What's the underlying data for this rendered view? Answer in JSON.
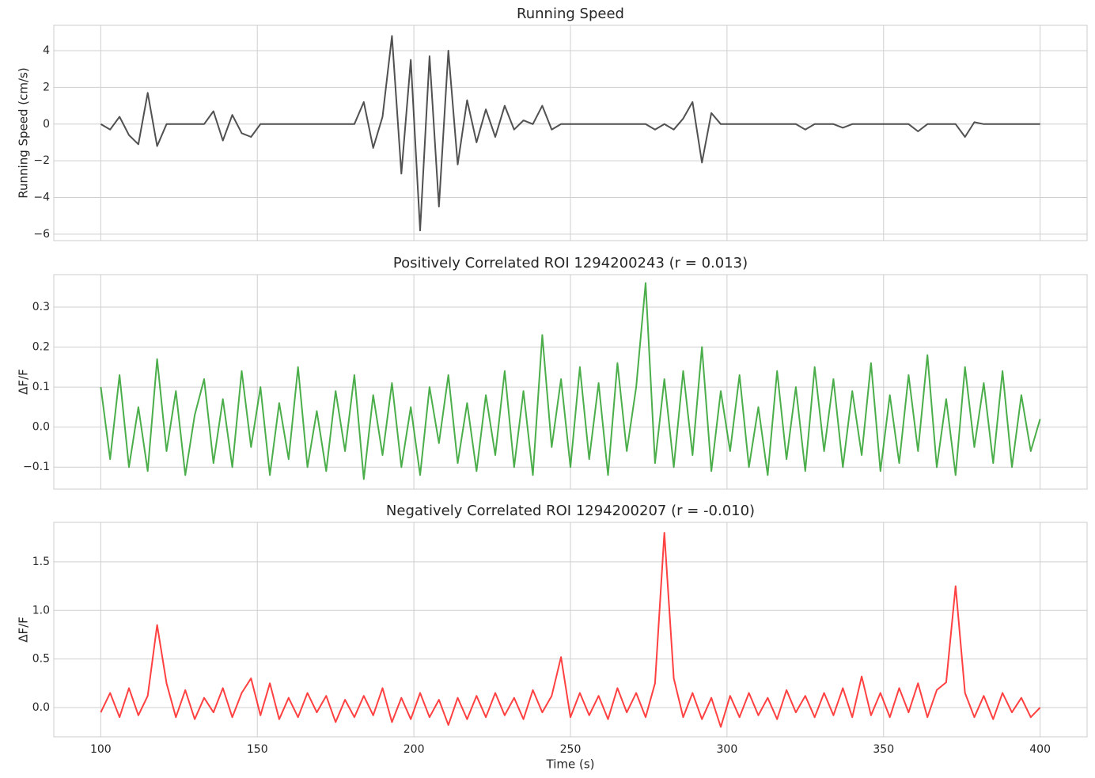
{
  "chart_data": [
    {
      "type": "line",
      "title": "Running Speed",
      "ylabel": "Running Speed (cm/s)",
      "color": "#333333",
      "x": [
        100,
        103,
        106,
        109,
        112,
        115,
        118,
        121,
        124,
        127,
        130,
        133,
        136,
        139,
        142,
        145,
        148,
        151,
        154,
        157,
        160,
        163,
        166,
        169,
        172,
        175,
        178,
        181,
        184,
        187,
        190,
        193,
        196,
        199,
        202,
        205,
        208,
        211,
        214,
        217,
        220,
        223,
        226,
        229,
        232,
        235,
        238,
        241,
        244,
        247,
        250,
        253,
        256,
        259,
        262,
        265,
        268,
        271,
        274,
        277,
        280,
        283,
        286,
        289,
        292,
        295,
        298,
        301,
        304,
        307,
        310,
        313,
        316,
        319,
        322,
        325,
        328,
        331,
        334,
        337,
        340,
        343,
        346,
        349,
        352,
        355,
        358,
        361,
        364,
        367,
        370,
        373,
        376,
        379,
        382,
        385,
        388,
        391,
        394,
        397,
        400
      ],
      "values": [
        0,
        -0.3,
        0.4,
        -0.6,
        -1.1,
        1.7,
        -1.2,
        0,
        0,
        0,
        0,
        0,
        0.7,
        -0.9,
        0.5,
        -0.5,
        -0.7,
        0,
        0,
        0,
        0,
        0,
        0,
        0,
        0,
        0,
        0,
        0,
        1.2,
        -1.3,
        0.4,
        4.8,
        -2.7,
        3.5,
        -5.8,
        3.7,
        -4.5,
        4.0,
        -2.2,
        1.3,
        -1.0,
        0.8,
        -0.7,
        1.0,
        -0.3,
        0.2,
        0,
        1.0,
        -0.3,
        0,
        0,
        0,
        0,
        0,
        0,
        0,
        0,
        0,
        0,
        -0.3,
        0,
        -0.3,
        0.3,
        1.2,
        -2.1,
        0.6,
        0,
        0,
        0,
        0,
        0,
        0,
        0,
        0,
        0,
        -0.3,
        0,
        0,
        0,
        -0.2,
        0,
        0,
        0,
        0,
        0,
        0,
        0,
        -0.4,
        0,
        0,
        0,
        0,
        -0.7,
        0.1,
        0,
        0,
        0,
        0,
        0,
        0,
        0
      ],
      "xlim": [
        85,
        415
      ],
      "xticks": [
        100,
        150,
        200,
        250,
        300,
        350,
        400
      ],
      "ylim": [
        -6.35,
        5.38
      ],
      "yticks": [
        {
          "value": -6,
          "label": "−6"
        },
        {
          "value": -4,
          "label": "−4"
        },
        {
          "value": -2,
          "label": "−2"
        },
        0,
        2,
        4
      ],
      "grid": true
    },
    {
      "type": "line",
      "title": "Positively Correlated ROI 1294200243 (r = 0.013)",
      "ylabel": "ΔF/F",
      "color": "#2ca02c",
      "x": [
        100,
        103,
        106,
        109,
        112,
        115,
        118,
        121,
        124,
        127,
        130,
        133,
        136,
        139,
        142,
        145,
        148,
        151,
        154,
        157,
        160,
        163,
        166,
        169,
        172,
        175,
        178,
        181,
        184,
        187,
        190,
        193,
        196,
        199,
        202,
        205,
        208,
        211,
        214,
        217,
        220,
        223,
        226,
        229,
        232,
        235,
        238,
        241,
        244,
        247,
        250,
        253,
        256,
        259,
        262,
        265,
        268,
        271,
        274,
        277,
        280,
        283,
        286,
        289,
        292,
        295,
        298,
        301,
        304,
        307,
        310,
        313,
        316,
        319,
        322,
        325,
        328,
        331,
        334,
        337,
        340,
        343,
        346,
        349,
        352,
        355,
        358,
        361,
        364,
        367,
        370,
        373,
        376,
        379,
        382,
        385,
        388,
        391,
        394,
        397,
        400
      ],
      "values": [
        0.1,
        -0.08,
        0.13,
        -0.1,
        0.05,
        -0.11,
        0.17,
        -0.06,
        0.09,
        -0.12,
        0.03,
        0.12,
        -0.09,
        0.07,
        -0.1,
        0.14,
        -0.05,
        0.1,
        -0.12,
        0.06,
        -0.08,
        0.15,
        -0.1,
        0.04,
        -0.11,
        0.09,
        -0.06,
        0.13,
        -0.13,
        0.08,
        -0.07,
        0.11,
        -0.1,
        0.05,
        -0.12,
        0.1,
        -0.04,
        0.13,
        -0.09,
        0.06,
        -0.11,
        0.08,
        -0.07,
        0.14,
        -0.1,
        0.09,
        -0.12,
        0.23,
        -0.05,
        0.12,
        -0.1,
        0.15,
        -0.08,
        0.11,
        -0.12,
        0.16,
        -0.06,
        0.1,
        0.36,
        -0.09,
        0.12,
        -0.1,
        0.14,
        -0.07,
        0.2,
        -0.11,
        0.09,
        -0.06,
        0.13,
        -0.1,
        0.05,
        -0.12,
        0.14,
        -0.08,
        0.1,
        -0.11,
        0.15,
        -0.06,
        0.12,
        -0.1,
        0.09,
        -0.07,
        0.16,
        -0.11,
        0.08,
        -0.09,
        0.13,
        -0.06,
        0.18,
        -0.1,
        0.07,
        -0.12,
        0.15,
        -0.05,
        0.11,
        -0.09,
        0.14,
        -0.1,
        0.08,
        -0.06,
        0.02
      ],
      "xlim": [
        85,
        415
      ],
      "xticks": [
        100,
        150,
        200,
        250,
        300,
        350,
        400
      ],
      "ylim": [
        -0.155,
        0.381
      ],
      "yticks": [
        {
          "value": -0.1,
          "label": "−0.1"
        },
        {
          "value": 0,
          "label": "0.0"
        },
        0.1,
        0.2,
        0.3
      ],
      "grid": true
    },
    {
      "type": "line",
      "title": "Negatively Correlated ROI 1294200207 (r = -0.010)",
      "ylabel": "ΔF/F",
      "xlabel": "Time (s)",
      "color": "#ff2020",
      "x": [
        100,
        103,
        106,
        109,
        112,
        115,
        118,
        121,
        124,
        127,
        130,
        133,
        136,
        139,
        142,
        145,
        148,
        151,
        154,
        157,
        160,
        163,
        166,
        169,
        172,
        175,
        178,
        181,
        184,
        187,
        190,
        193,
        196,
        199,
        202,
        205,
        208,
        211,
        214,
        217,
        220,
        223,
        226,
        229,
        232,
        235,
        238,
        241,
        244,
        247,
        250,
        253,
        256,
        259,
        262,
        265,
        268,
        271,
        274,
        277,
        280,
        283,
        286,
        289,
        292,
        295,
        298,
        301,
        304,
        307,
        310,
        313,
        316,
        319,
        322,
        325,
        328,
        331,
        334,
        337,
        340,
        343,
        346,
        349,
        352,
        355,
        358,
        361,
        364,
        367,
        370,
        373,
        376,
        379,
        382,
        385,
        388,
        391,
        394,
        397,
        400
      ],
      "values": [
        -0.05,
        0.15,
        -0.1,
        0.2,
        -0.08,
        0.12,
        0.85,
        0.25,
        -0.1,
        0.18,
        -0.12,
        0.1,
        -0.05,
        0.2,
        -0.1,
        0.15,
        0.3,
        -0.08,
        0.25,
        -0.12,
        0.1,
        -0.1,
        0.15,
        -0.05,
        0.12,
        -0.15,
        0.08,
        -0.1,
        0.12,
        -0.08,
        0.2,
        -0.15,
        0.1,
        -0.12,
        0.15,
        -0.1,
        0.08,
        -0.18,
        0.1,
        -0.12,
        0.12,
        -0.1,
        0.15,
        -0.08,
        0.1,
        -0.12,
        0.18,
        -0.05,
        0.12,
        0.52,
        -0.1,
        0.15,
        -0.08,
        0.12,
        -0.12,
        0.2,
        -0.05,
        0.15,
        -0.1,
        0.25,
        1.8,
        0.3,
        -0.1,
        0.15,
        -0.12,
        0.1,
        -0.2,
        0.12,
        -0.1,
        0.15,
        -0.08,
        0.1,
        -0.12,
        0.18,
        -0.05,
        0.12,
        -0.1,
        0.15,
        -0.08,
        0.2,
        -0.1,
        0.32,
        -0.08,
        0.15,
        -0.1,
        0.2,
        -0.05,
        0.25,
        -0.1,
        0.18,
        0.26,
        1.25,
        0.15,
        -0.1,
        0.12,
        -0.12,
        0.15,
        -0.05,
        0.1,
        -0.1,
        0.0
      ],
      "xlim": [
        85,
        415
      ],
      "xticks": [
        100,
        150,
        200,
        250,
        300,
        350,
        400
      ],
      "ylim": [
        -0.302,
        1.907
      ],
      "yticks": [
        {
          "value": 0,
          "label": "0.0"
        },
        0.5,
        {
          "value": 1,
          "label": "1.0"
        },
        1.5
      ],
      "grid": true
    }
  ]
}
